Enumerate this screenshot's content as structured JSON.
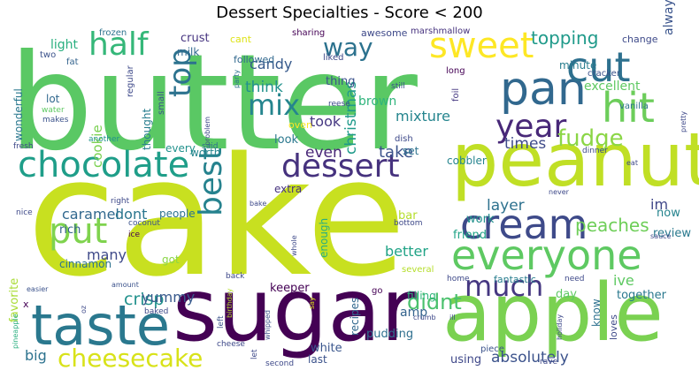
{
  "chart_data": {
    "type": "wordcloud",
    "title": "Dessert Specialties - Score < 200",
    "words": [
      {
        "text": "cake",
        "weight": 100,
        "color": "#c8e020",
        "rot": 0
      },
      {
        "text": "butter",
        "weight": 92,
        "color": "#5ac864",
        "rot": 0
      },
      {
        "text": "sugar",
        "weight": 78,
        "color": "#440154",
        "rot": 0
      },
      {
        "text": "apple",
        "weight": 66,
        "color": "#7ad151",
        "rot": 0
      },
      {
        "text": "peanut",
        "weight": 62,
        "color": "#c0df25",
        "rot": 0
      },
      {
        "text": "taste",
        "weight": 52,
        "color": "#2a788e",
        "rot": 0
      },
      {
        "text": "pan",
        "weight": 46,
        "color": "#31688e",
        "rot": 0
      },
      {
        "text": "cream",
        "weight": 44,
        "color": "#3e4a89",
        "rot": 0
      },
      {
        "text": "everyone",
        "weight": 44,
        "color": "#5ec962",
        "rot": 0
      },
      {
        "text": "chocolate",
        "weight": 41,
        "color": "#1f9e89",
        "rot": 0
      },
      {
        "text": "sweet",
        "weight": 41,
        "color": "#fde725",
        "rot": 0
      },
      {
        "text": "hit",
        "weight": 40,
        "color": "#6ccd5a",
        "rot": 0
      },
      {
        "text": "cut",
        "weight": 40,
        "color": "#2d708e",
        "rot": 0
      },
      {
        "text": "half",
        "weight": 37,
        "color": "#35b779",
        "rot": 0
      },
      {
        "text": "dessert",
        "weight": 37,
        "color": "#46327e",
        "rot": 0
      },
      {
        "text": "year",
        "weight": 36,
        "color": "#482878",
        "rot": 0
      },
      {
        "text": "put",
        "weight": 36,
        "color": "#7fd34e",
        "rot": 0
      },
      {
        "text": "best",
        "weight": 35,
        "color": "#26828e",
        "rot": 90
      },
      {
        "text": "top",
        "weight": 35,
        "color": "#2c728e",
        "rot": 90
      },
      {
        "text": "much",
        "weight": 32,
        "color": "#453781",
        "rot": 0
      },
      {
        "text": "mix",
        "weight": 30,
        "color": "#25858e",
        "rot": 0
      },
      {
        "text": "cheesecake",
        "weight": 27,
        "color": "#d8e219",
        "rot": 0
      },
      {
        "text": "way",
        "weight": 26,
        "color": "#2c728e",
        "rot": 0
      },
      {
        "text": "fudge",
        "weight": 24,
        "color": "#8bd646",
        "rot": 0
      },
      {
        "text": "didnt",
        "weight": 24,
        "color": "#4ac16d",
        "rot": 0
      },
      {
        "text": "topping",
        "weight": 20,
        "color": "#1f9a8a",
        "rot": 0
      },
      {
        "text": "crisp",
        "weight": 18,
        "color": "#21918c",
        "rot": 0
      },
      {
        "text": "peaches",
        "weight": 18,
        "color": "#6ece58",
        "rot": 0
      },
      {
        "text": "take",
        "weight": 17,
        "color": "#3b528b",
        "rot": 0
      },
      {
        "text": "absolutely",
        "weight": 16,
        "color": "#3b528b",
        "rot": 0
      },
      {
        "text": "yummy",
        "weight": 16,
        "color": "#38598c",
        "rot": 0
      },
      {
        "text": "even",
        "weight": 15,
        "color": "#482677",
        "rot": 0
      },
      {
        "text": "layer",
        "weight": 15,
        "color": "#2d718e",
        "rot": 0
      },
      {
        "text": "think",
        "weight": 15,
        "color": "#21918c",
        "rot": 0
      },
      {
        "text": "times",
        "weight": 15,
        "color": "#3e4a89",
        "rot": 0
      },
      {
        "text": "christmas",
        "weight": 15,
        "color": "#1f9a8a",
        "rot": 90
      },
      {
        "text": "caramel",
        "weight": 15,
        "color": "#31688e",
        "rot": 0
      },
      {
        "text": "many",
        "weight": 15,
        "color": "#3e4989",
        "rot": 0
      },
      {
        "text": "big",
        "weight": 15,
        "color": "#2c728e",
        "rot": 0
      },
      {
        "text": "mixture",
        "weight": 14,
        "color": "#25858e",
        "rot": 0
      },
      {
        "text": "candy",
        "weight": 14,
        "color": "#375a8c",
        "rot": 0
      },
      {
        "text": "took",
        "weight": 14,
        "color": "#453781",
        "rot": 0
      },
      {
        "text": "cookie",
        "weight": 14,
        "color": "#7ad151",
        "rot": 90
      },
      {
        "text": "ive",
        "weight": 14,
        "color": "#5ec962",
        "rot": 0
      },
      {
        "text": "better",
        "weight": 14,
        "color": "#20a386",
        "rot": 0
      },
      {
        "text": "dont",
        "weight": 14,
        "color": "#2a768e",
        "rot": 0
      },
      {
        "text": "im",
        "weight": 14,
        "color": "#3f4788",
        "rot": 0
      },
      {
        "text": "always",
        "weight": 13,
        "color": "#3a548c",
        "rot": 90
      },
      {
        "text": "favorite",
        "weight": 13,
        "color": "#a8db34",
        "rot": 90
      },
      {
        "text": "light",
        "weight": 13,
        "color": "#29af7f",
        "rot": 0
      },
      {
        "text": "crust",
        "weight": 12,
        "color": "#463480",
        "rot": 0
      },
      {
        "text": "brown",
        "weight": 12,
        "color": "#2fb47c",
        "rot": 0
      },
      {
        "text": "excellent",
        "weight": 12,
        "color": "#5ec962",
        "rot": 0
      },
      {
        "text": "amp",
        "weight": 12,
        "color": "#33638d",
        "rot": 0
      },
      {
        "text": "friend",
        "weight": 12,
        "color": "#20a386",
        "rot": 0
      },
      {
        "text": "work",
        "weight": 12,
        "color": "#21918c",
        "rot": 0
      },
      {
        "text": "review",
        "weight": 12,
        "color": "#29798e",
        "rot": 0
      },
      {
        "text": "rich",
        "weight": 12,
        "color": "#33628d",
        "rot": 0
      },
      {
        "text": "pudding",
        "weight": 12,
        "color": "#2e6f8e",
        "rot": 0
      },
      {
        "text": "together",
        "weight": 12,
        "color": "#2a788e",
        "rot": 0
      },
      {
        "text": "white",
        "weight": 11,
        "color": "#39558c",
        "rot": 0
      },
      {
        "text": "now",
        "weight": 11,
        "color": "#25848e",
        "rot": 0
      },
      {
        "text": "wonderful",
        "weight": 11,
        "color": "#2a788e",
        "rot": 90
      },
      {
        "text": "keeper",
        "weight": 11,
        "color": "#440154",
        "rot": 0
      },
      {
        "text": "thought",
        "weight": 11,
        "color": "#287d8e",
        "rot": 90
      },
      {
        "text": "look",
        "weight": 11,
        "color": "#2a788e",
        "rot": 0
      },
      {
        "text": "day",
        "weight": 11,
        "color": "#5ec962",
        "rot": 0
      },
      {
        "text": "know",
        "weight": 11,
        "color": "#2d708e",
        "rot": 90
      },
      {
        "text": "filling",
        "weight": 11,
        "color": "#2fb47c",
        "rot": 0
      },
      {
        "text": "using",
        "weight": 11,
        "color": "#3f4889",
        "rot": 0
      },
      {
        "text": "enough",
        "weight": 11,
        "color": "#29af7f",
        "rot": 90
      },
      {
        "text": "got",
        "weight": 11,
        "color": "#8bd646",
        "rot": 0
      },
      {
        "text": "fantastic",
        "weight": 10,
        "color": "#287d8e",
        "rot": 0
      },
      {
        "text": "bar",
        "weight": 10,
        "color": "#b5de2b",
        "rot": 0
      },
      {
        "text": "cinnamon",
        "weight": 10,
        "color": "#2c728e",
        "rot": 0
      },
      {
        "text": "people",
        "weight": 10,
        "color": "#2c728e",
        "rot": 0
      },
      {
        "text": "last",
        "weight": 10,
        "color": "#3b528b",
        "rot": 0
      },
      {
        "text": "recipes",
        "weight": 10,
        "color": "#31688e",
        "rot": 90
      },
      {
        "text": "minute",
        "weight": 10,
        "color": "#287d8e",
        "rot": 0
      },
      {
        "text": "extra",
        "weight": 10,
        "color": "#46327e",
        "rot": 0
      },
      {
        "text": "thing",
        "weight": 10,
        "color": "#3b528b",
        "rot": 0
      },
      {
        "text": "cobbler",
        "weight": 10,
        "color": "#25848e",
        "rot": 0
      },
      {
        "text": "awesome",
        "weight": 9,
        "color": "#3e4989",
        "rot": 0
      },
      {
        "text": "milk",
        "weight": 9,
        "color": "#31688e",
        "rot": 0
      },
      {
        "text": "loves",
        "weight": 9,
        "color": "#3e4989",
        "rot": 90
      },
      {
        "text": "set",
        "weight": 9,
        "color": "#2c728e",
        "rot": 0
      },
      {
        "text": "every",
        "weight": 9,
        "color": "#21918c",
        "rot": 0
      },
      {
        "text": "worth",
        "weight": 9,
        "color": "#25858e",
        "rot": 0
      },
      {
        "text": "lot",
        "weight": 9,
        "color": "#31688e",
        "rot": 0
      },
      {
        "text": "cant",
        "weight": 8,
        "color": "#dde318",
        "rot": 0
      },
      {
        "text": "followed",
        "weight": 8,
        "color": "#31688e",
        "rot": 0
      },
      {
        "text": "change",
        "weight": 8,
        "color": "#3e4a89",
        "rot": 0
      },
      {
        "text": "vanilla",
        "weight": 8,
        "color": "#2c728e",
        "rot": 0
      },
      {
        "text": "x",
        "weight": 8,
        "color": "#440154",
        "rot": 0
      },
      {
        "text": "small",
        "weight": 8,
        "color": "#3b528b",
        "rot": 90
      },
      {
        "text": "piece",
        "weight": 8,
        "color": "#3b528b",
        "rot": 0
      },
      {
        "text": "several",
        "weight": 8,
        "color": "#b5de2b",
        "rot": 0
      },
      {
        "text": "go",
        "weight": 8,
        "color": "#440154",
        "rot": 0
      },
      {
        "text": "foil",
        "weight": 8,
        "color": "#453781",
        "rot": 90
      },
      {
        "text": "regular",
        "weight": 7,
        "color": "#3e4989",
        "rot": 90
      },
      {
        "text": "dish",
        "weight": 7,
        "color": "#3e4989",
        "rot": 0
      },
      {
        "text": "oven",
        "weight": 7,
        "color": "#fde725",
        "rot": 0
      },
      {
        "text": "two",
        "weight": 7,
        "color": "#3b528b",
        "rot": 0
      },
      {
        "text": "frozen",
        "weight": 7,
        "color": "#2c728e",
        "rot": 0
      },
      {
        "text": "fat",
        "weight": 7,
        "color": "#33638d",
        "rot": 0
      },
      {
        "text": "sharing",
        "weight": 7,
        "color": "#440154",
        "rot": 0
      },
      {
        "text": "liked",
        "weight": 7,
        "color": "#3e4989",
        "rot": 0
      },
      {
        "text": "marshmallow",
        "weight": 7,
        "color": "#46327e",
        "rot": 0
      },
      {
        "text": "long",
        "weight": 7,
        "color": "#440154",
        "rot": 0
      },
      {
        "text": "cracker",
        "weight": 7,
        "color": "#3b528b",
        "rot": 0
      },
      {
        "text": "still",
        "weight": 6,
        "color": "#3b528b",
        "rot": 0
      },
      {
        "text": "reese",
        "weight": 6,
        "color": "#3e4989",
        "rot": 0
      },
      {
        "text": "problem",
        "weight": 6,
        "color": "#3e4989",
        "rot": 90
      },
      {
        "text": "party",
        "weight": 6,
        "color": "#2c728e",
        "rot": 90
      },
      {
        "text": "water",
        "weight": 6,
        "color": "#5ec962",
        "rot": 0
      },
      {
        "text": "makes",
        "weight": 6,
        "color": "#3b528b",
        "rot": 0
      },
      {
        "text": "fresh",
        "weight": 6,
        "color": "#3e4989",
        "rot": 0
      },
      {
        "text": "another",
        "weight": 6,
        "color": "#21918c",
        "rot": 0
      },
      {
        "text": "said",
        "weight": 6,
        "color": "#2c728e",
        "rot": 0
      },
      {
        "text": "dinner",
        "weight": 6,
        "color": "#3e4989",
        "rot": 0
      },
      {
        "text": "pretty",
        "weight": 6,
        "color": "#3e4989",
        "rot": 90
      },
      {
        "text": "eat",
        "weight": 6,
        "color": "#3e4989",
        "rot": 0
      },
      {
        "text": "nice",
        "weight": 6,
        "color": "#3e4989",
        "rot": 0
      },
      {
        "text": "right",
        "weight": 6,
        "color": "#3e4989",
        "rot": 0
      },
      {
        "text": "coconut",
        "weight": 6,
        "color": "#3b528b",
        "rot": 0
      },
      {
        "text": "ice",
        "weight": 6,
        "color": "#440154",
        "rot": 0
      },
      {
        "text": "bake",
        "weight": 6,
        "color": "#3e4989",
        "rot": 0
      },
      {
        "text": "never",
        "weight": 6,
        "color": "#3e4989",
        "rot": 0
      },
      {
        "text": "bottom",
        "weight": 6,
        "color": "#3e4989",
        "rot": 0
      },
      {
        "text": "whole",
        "weight": 6,
        "color": "#3e4989",
        "rot": 90
      },
      {
        "text": "sauce",
        "weight": 6,
        "color": "#3e4989",
        "rot": 0
      },
      {
        "text": "back",
        "weight": 6,
        "color": "#3e4989",
        "rot": 0
      },
      {
        "text": "easier",
        "weight": 6,
        "color": "#3b528b",
        "rot": 0
      },
      {
        "text": "amount",
        "weight": 6,
        "color": "#3b528b",
        "rot": 0
      },
      {
        "text": "pineapple",
        "weight": 6,
        "color": "#29af7f",
        "rot": 90
      },
      {
        "text": "oz",
        "weight": 6,
        "color": "#3e4989",
        "rot": 90
      },
      {
        "text": "birthday",
        "weight": 6,
        "color": "#b5de2b",
        "rot": 90
      },
      {
        "text": "baked",
        "weight": 6,
        "color": "#3e4989",
        "rot": 0
      },
      {
        "text": "left",
        "weight": 6,
        "color": "#3b528b",
        "rot": 90
      },
      {
        "text": "whipped",
        "weight": 6,
        "color": "#3b528b",
        "rot": 90
      },
      {
        "text": "cheese",
        "weight": 6,
        "color": "#3e4989",
        "rot": 0
      },
      {
        "text": "let",
        "weight": 6,
        "color": "#3e4989",
        "rot": 90
      },
      {
        "text": "second",
        "weight": 6,
        "color": "#3e4989",
        "rot": 0
      },
      {
        "text": "say",
        "weight": 6,
        "color": "#dde318",
        "rot": 90
      },
      {
        "text": "crumb",
        "weight": 6,
        "color": "#3e4989",
        "rot": 0
      },
      {
        "text": "ill",
        "weight": 6,
        "color": "#3e4989",
        "rot": 0
      },
      {
        "text": "home",
        "weight": 6,
        "color": "#3e4989",
        "rot": 0
      },
      {
        "text": "need",
        "weight": 6,
        "color": "#3e4989",
        "rot": 0
      },
      {
        "text": "holiday",
        "weight": 6,
        "color": "#3e4989",
        "rot": 90
      },
      {
        "text": "rave",
        "weight": 6,
        "color": "#3e4989",
        "rot": 0
      }
    ]
  }
}
